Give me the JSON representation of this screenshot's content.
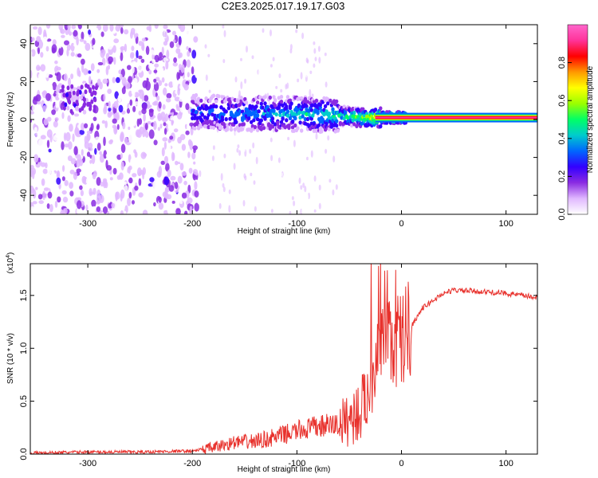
{
  "title": "C2E3.2025.017.19.17.G03",
  "chart_data": [
    {
      "type": "heatmap",
      "xlabel": "Height of straight line (km)",
      "ylabel": "Frequency (Hz)",
      "xlim": [
        -355,
        130
      ],
      "ylim": [
        -50,
        50
      ],
      "xticks": [
        -300,
        -200,
        -100,
        0,
        100
      ],
      "yticks": [
        -40,
        -20,
        0,
        20,
        40
      ],
      "colorbar": {
        "label": "Normalized spectral amplitude",
        "range": [
          0,
          1
        ],
        "ticks": [
          "0.0",
          "0.2",
          "0.4",
          "0.6",
          "0.8"
        ],
        "colormap": [
          "#ffffff",
          "#e0b8ff",
          "#8a2be2",
          "#3300ff",
          "#0066ff",
          "#00cccc",
          "#00ff66",
          "#99ff00",
          "#ffff00",
          "#ff9900",
          "#ff0000",
          "#ff3399",
          "#ff66cc"
        ]
      },
      "ridge": [
        {
          "x": -200,
          "f": 4,
          "v": 0.3
        },
        {
          "x": -150,
          "f": 3,
          "v": 0.35
        },
        {
          "x": -100,
          "f": 3,
          "v": 0.4
        },
        {
          "x": -60,
          "f": 2,
          "v": 0.45
        },
        {
          "x": -40,
          "f": 1,
          "v": 0.55
        },
        {
          "x": -20,
          "f": 1,
          "v": 0.75
        },
        {
          "x": 0,
          "f": 1,
          "v": 0.85
        },
        {
          "x": 130,
          "f": 1,
          "v": 0.9
        }
      ]
    },
    {
      "type": "line",
      "xlabel": "Height of straight line (km)",
      "ylabel": "SNR (10 * v/v)",
      "y_multiplier": "(x10",
      "y_multiplier_exp": "4",
      "y_multiplier_close": ")",
      "xlim": [
        -355,
        130
      ],
      "ylim": [
        0,
        1.8
      ],
      "xticks": [
        -300,
        -200,
        -100,
        0,
        100
      ],
      "yticks": [
        "0.0",
        "0.5",
        "1.0",
        "1.5"
      ],
      "series": [
        {
          "color": "#e8322d",
          "x": [
            -355,
            -300,
            -250,
            -200,
            -180,
            -160,
            -140,
            -120,
            -100,
            -80,
            -60,
            -50,
            -40,
            -30,
            -25,
            -20,
            -15,
            -10,
            0,
            10,
            20,
            30,
            40,
            50,
            70,
            100,
            130
          ],
          "y": [
            0.01,
            0.02,
            0.02,
            0.03,
            0.06,
            0.11,
            0.12,
            0.16,
            0.22,
            0.26,
            0.28,
            0.33,
            0.4,
            0.62,
            0.85,
            0.95,
            1.1,
            1.05,
            1.1,
            1.22,
            1.38,
            1.45,
            1.52,
            1.55,
            1.54,
            1.52,
            1.48
          ]
        }
      ]
    }
  ]
}
